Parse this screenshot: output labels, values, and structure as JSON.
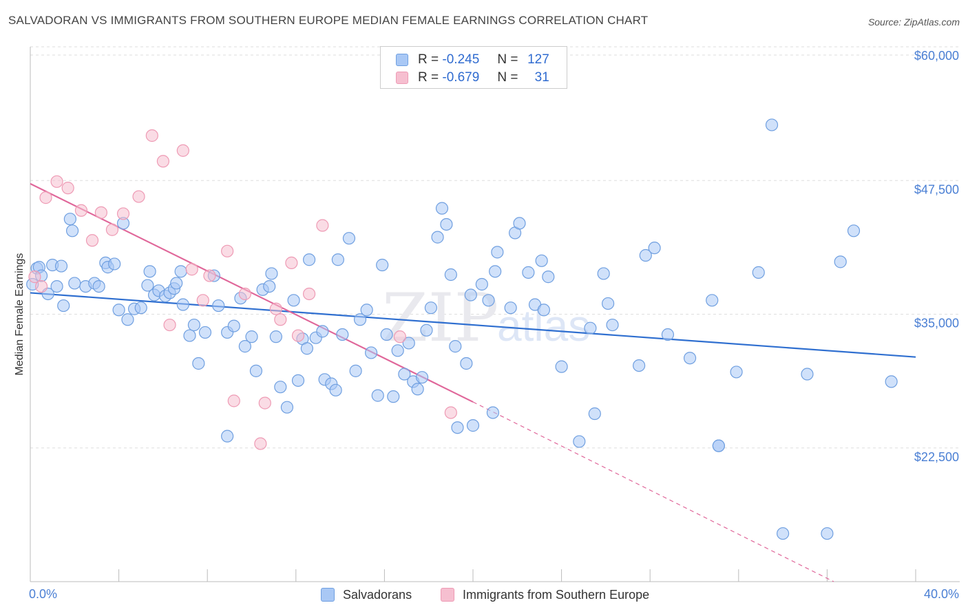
{
  "header": {
    "title": "SALVADORAN VS IMMIGRANTS FROM SOUTHERN EUROPE MEDIAN FEMALE EARNINGS CORRELATION CHART",
    "source": "Source: ZipAtlas.com"
  },
  "legend": {
    "series1": {
      "r_label": "R =",
      "r_value": "-0.245",
      "n_label": "N =",
      "n_value": "127"
    },
    "series2": {
      "r_label": "R =",
      "r_value": "-0.679",
      "n_label": "N =",
      "n_value": "31"
    }
  },
  "watermark": {
    "zip": "ZIP",
    "atlas": "atlas"
  },
  "colors": {
    "blue_fill": "#a9c8f5",
    "blue_stroke": "#6f9fe0",
    "blue_line": "#2f6fd0",
    "pink_fill": "#f6bfd0",
    "pink_stroke": "#ee9ab4",
    "pink_line": "#e0679a"
  },
  "chart_data": {
    "type": "scatter",
    "title": "SALVADORAN VS IMMIGRANTS FROM SOUTHERN EUROPE MEDIAN FEMALE EARNINGS CORRELATION CHART",
    "xlabel": "",
    "ylabel": "Median Female Earnings",
    "xlim": [
      0,
      40
    ],
    "ylim": [
      10000,
      60000
    ],
    "x_tick_labels": [
      "0.0%",
      "40.0%"
    ],
    "y_ticks": [
      22500,
      35000,
      47500,
      60000
    ],
    "y_tick_labels": [
      "$22,500",
      "$35,000",
      "$47,500",
      "$60,000"
    ],
    "grid": "horizontal dashed",
    "legend_position": "top-center",
    "series": [
      {
        "name": "Salvadorans",
        "color": "#a9c8f5",
        "points": [
          [
            0.1,
            37800
          ],
          [
            0.3,
            39300
          ],
          [
            0.4,
            39400
          ],
          [
            0.5,
            38600
          ],
          [
            0.8,
            36900
          ],
          [
            1.0,
            39600
          ],
          [
            1.2,
            37600
          ],
          [
            1.4,
            39500
          ],
          [
            1.5,
            35800
          ],
          [
            1.8,
            43900
          ],
          [
            1.9,
            42800
          ],
          [
            2.0,
            37900
          ],
          [
            2.5,
            37600
          ],
          [
            2.9,
            37900
          ],
          [
            3.1,
            37600
          ],
          [
            3.4,
            39800
          ],
          [
            3.5,
            39400
          ],
          [
            3.8,
            39700
          ],
          [
            4.0,
            35400
          ],
          [
            4.2,
            43500
          ],
          [
            4.4,
            34500
          ],
          [
            4.7,
            35500
          ],
          [
            5.0,
            35600
          ],
          [
            5.3,
            37700
          ],
          [
            5.4,
            39000
          ],
          [
            5.6,
            36800
          ],
          [
            5.8,
            37200
          ],
          [
            6.1,
            36700
          ],
          [
            6.3,
            37000
          ],
          [
            6.5,
            37400
          ],
          [
            6.6,
            37900
          ],
          [
            6.8,
            39000
          ],
          [
            6.9,
            35900
          ],
          [
            7.2,
            33000
          ],
          [
            7.4,
            34000
          ],
          [
            7.6,
            30400
          ],
          [
            7.9,
            33300
          ],
          [
            8.3,
            38600
          ],
          [
            8.5,
            35800
          ],
          [
            8.9,
            33300
          ],
          [
            8.9,
            23600
          ],
          [
            9.2,
            33900
          ],
          [
            9.5,
            36500
          ],
          [
            9.7,
            32000
          ],
          [
            10.0,
            32900
          ],
          [
            10.2,
            29700
          ],
          [
            10.5,
            37300
          ],
          [
            10.8,
            37600
          ],
          [
            10.9,
            38800
          ],
          [
            11.1,
            32900
          ],
          [
            11.3,
            28200
          ],
          [
            11.6,
            26300
          ],
          [
            11.9,
            36300
          ],
          [
            12.1,
            28800
          ],
          [
            12.3,
            32700
          ],
          [
            12.5,
            31800
          ],
          [
            12.6,
            40100
          ],
          [
            12.9,
            32800
          ],
          [
            13.2,
            33400
          ],
          [
            13.3,
            28900
          ],
          [
            13.6,
            28500
          ],
          [
            13.8,
            27900
          ],
          [
            13.9,
            40100
          ],
          [
            14.1,
            33100
          ],
          [
            14.4,
            42100
          ],
          [
            14.7,
            29700
          ],
          [
            14.9,
            34500
          ],
          [
            15.2,
            35400
          ],
          [
            15.4,
            31400
          ],
          [
            15.7,
            27400
          ],
          [
            15.9,
            39600
          ],
          [
            16.1,
            33100
          ],
          [
            16.4,
            27300
          ],
          [
            16.6,
            31600
          ],
          [
            16.9,
            29400
          ],
          [
            17.1,
            32300
          ],
          [
            17.3,
            28700
          ],
          [
            17.5,
            28000
          ],
          [
            17.7,
            29100
          ],
          [
            17.9,
            33500
          ],
          [
            18.1,
            35600
          ],
          [
            18.4,
            42200
          ],
          [
            18.6,
            44900
          ],
          [
            18.8,
            43400
          ],
          [
            19.0,
            38700
          ],
          [
            19.2,
            32000
          ],
          [
            19.3,
            24400
          ],
          [
            19.7,
            30400
          ],
          [
            19.9,
            36800
          ],
          [
            20.0,
            24600
          ],
          [
            20.4,
            37800
          ],
          [
            20.7,
            36300
          ],
          [
            20.9,
            25800
          ],
          [
            21.0,
            39000
          ],
          [
            21.1,
            40800
          ],
          [
            21.7,
            35600
          ],
          [
            21.9,
            42600
          ],
          [
            22.1,
            43500
          ],
          [
            22.5,
            38900
          ],
          [
            22.8,
            35900
          ],
          [
            23.1,
            40000
          ],
          [
            23.2,
            35400
          ],
          [
            23.4,
            38500
          ],
          [
            24.0,
            30100
          ],
          [
            24.8,
            23100
          ],
          [
            25.3,
            33700
          ],
          [
            25.5,
            25700
          ],
          [
            25.9,
            38800
          ],
          [
            26.1,
            36000
          ],
          [
            26.3,
            34000
          ],
          [
            27.5,
            30200
          ],
          [
            27.8,
            40500
          ],
          [
            28.2,
            41200
          ],
          [
            28.8,
            33100
          ],
          [
            29.8,
            30900
          ],
          [
            30.8,
            36300
          ],
          [
            31.1,
            22700
          ],
          [
            31.1,
            22700
          ],
          [
            31.9,
            29600
          ],
          [
            32.9,
            38900
          ],
          [
            33.5,
            52700
          ],
          [
            34.0,
            14500
          ],
          [
            35.1,
            29400
          ],
          [
            36.0,
            14500
          ],
          [
            36.6,
            39900
          ],
          [
            37.2,
            42800
          ],
          [
            38.9,
            28700
          ]
        ]
      },
      {
        "name": "Immigrants from Southern Europe",
        "color": "#f6bfd0",
        "points": [
          [
            0.2,
            38500
          ],
          [
            0.5,
            37600
          ],
          [
            0.7,
            45900
          ],
          [
            1.2,
            47400
          ],
          [
            1.7,
            46800
          ],
          [
            2.3,
            44700
          ],
          [
            2.8,
            41900
          ],
          [
            3.2,
            44500
          ],
          [
            3.7,
            42900
          ],
          [
            4.2,
            44400
          ],
          [
            4.9,
            46000
          ],
          [
            5.5,
            51700
          ],
          [
            6.0,
            49300
          ],
          [
            6.3,
            34000
          ],
          [
            6.9,
            50300
          ],
          [
            7.3,
            39200
          ],
          [
            7.8,
            36300
          ],
          [
            8.1,
            38600
          ],
          [
            8.9,
            40900
          ],
          [
            9.2,
            26900
          ],
          [
            9.7,
            36900
          ],
          [
            10.4,
            22900
          ],
          [
            10.6,
            26700
          ],
          [
            11.1,
            35500
          ],
          [
            11.3,
            34500
          ],
          [
            11.8,
            39800
          ],
          [
            12.1,
            33000
          ],
          [
            12.6,
            36900
          ],
          [
            13.2,
            43300
          ],
          [
            16.7,
            32900
          ],
          [
            19.0,
            25800
          ]
        ]
      }
    ],
    "trend_lines": [
      {
        "series": "Salvadorans",
        "x": [
          0,
          40
        ],
        "y": [
          37000,
          31000
        ],
        "style": "solid"
      },
      {
        "series": "Immigrants from Southern Europe",
        "solid_x": [
          0,
          20
        ],
        "solid_y": [
          47200,
          26800
        ],
        "dashed_x": [
          20,
          36.3
        ],
        "dashed_y": [
          26800,
          10000
        ]
      }
    ]
  },
  "bottom_legend": {
    "series1_label": "Salvadorans",
    "series2_label": "Immigrants from Southern Europe"
  }
}
